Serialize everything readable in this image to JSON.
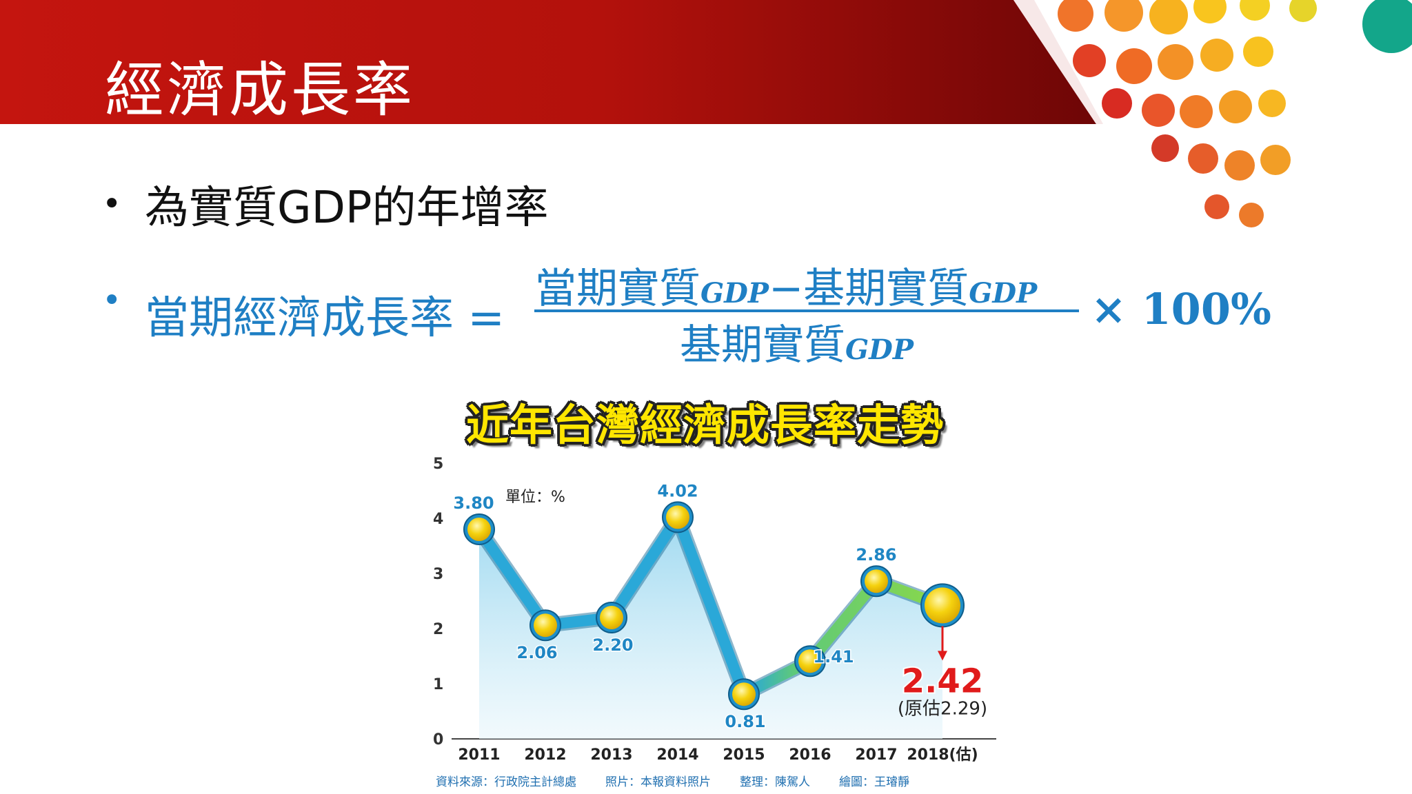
{
  "slide": {
    "title": "經濟成長率",
    "bullet1": "為實質GDP的年增率",
    "formula": {
      "lhs": "當期經濟成長率 =",
      "num_a": "當期實質",
      "num_sub_a": "GDP",
      "num_minus": "−",
      "num_b": "基期實質",
      "num_sub_b": "GDP",
      "den": "基期實質",
      "den_sub": "GDP",
      "mult": "× 100%"
    }
  },
  "colors": {
    "header_red": "#c0140f",
    "header_dark": "#7d0808",
    "accent_blue": "#1f7fc4",
    "line_blue": "#2aa8d8",
    "line_green": "#7ed64a",
    "highlight_red": "#e01b1b"
  },
  "chart_data": {
    "type": "line",
    "title": "近年台灣經濟成長率走勢",
    "unit_note": "單位：%",
    "categories": [
      "2011",
      "2012",
      "2013",
      "2014",
      "2015",
      "2016",
      "2017",
      "2018(估)"
    ],
    "values": [
      3.8,
      2.06,
      2.2,
      4.02,
      0.81,
      1.41,
      2.86,
      2.42
    ],
    "value_labels": [
      "3.80",
      "2.06",
      "2.20",
      "4.02",
      "0.81",
      "1.41",
      "2.86",
      "2.42"
    ],
    "yticks": [
      "0",
      "1",
      "2",
      "3",
      "4",
      "5"
    ],
    "ylim": [
      0,
      5
    ],
    "annotation": {
      "label": "(原估2.29)"
    },
    "footer": {
      "source": "資料來源：行政院主計總處",
      "photo": "照片：本報資料照片",
      "editor": "整理：陳駕人",
      "drawing": "繪圖：王璿靜"
    }
  }
}
